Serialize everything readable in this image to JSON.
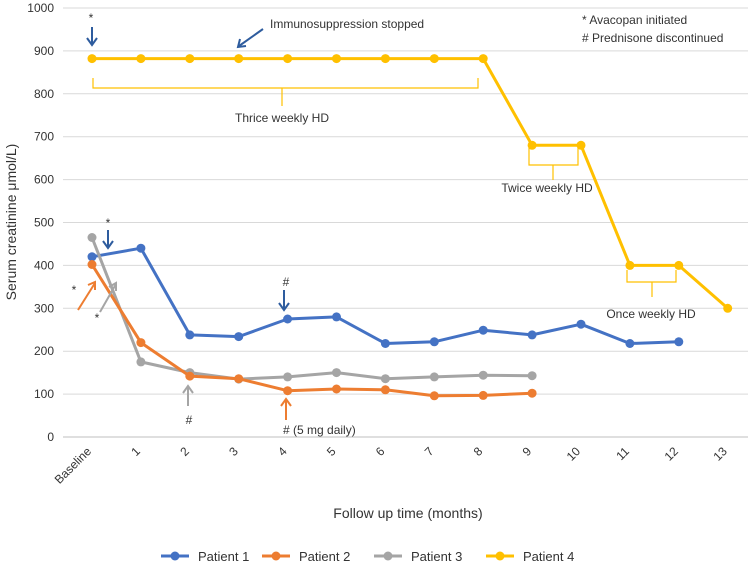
{
  "chart_data": {
    "type": "line",
    "title": "",
    "xlabel": "Follow up time (months)",
    "ylabel": "Serum creatinine μmol/L)",
    "ylim": [
      0,
      1000
    ],
    "yticks": [
      0,
      100,
      200,
      300,
      400,
      500,
      600,
      700,
      800,
      900,
      1000
    ],
    "categories": [
      "Baseline",
      "1",
      "2",
      "3",
      "4",
      "5",
      "6",
      "7",
      "8",
      "9",
      "10",
      "11",
      "12",
      "13"
    ],
    "grid": true,
    "legend_position": "bottom",
    "series": [
      {
        "name": "Patient 1",
        "color": "#4472C4",
        "values": [
          420,
          440,
          238,
          234,
          275,
          280,
          218,
          222,
          249,
          238,
          263,
          218,
          222,
          null
        ]
      },
      {
        "name": "Patient 2",
        "color": "#ED7D31",
        "values": [
          402,
          220,
          142,
          136,
          108,
          112,
          110,
          96,
          97,
          102,
          null,
          null,
          null,
          null
        ]
      },
      {
        "name": "Patient 3",
        "color": "#A5A5A5",
        "values": [
          465,
          175,
          150,
          135,
          140,
          150,
          136,
          140,
          144,
          143,
          null,
          null,
          null,
          null
        ]
      },
      {
        "name": "Patient 4",
        "color": "#FFC000",
        "values": [
          882,
          882,
          882,
          882,
          882,
          882,
          882,
          882,
          882,
          680,
          680,
          400,
          400,
          300
        ]
      }
    ],
    "annotations": {
      "immunosuppression": "Immunosuppression stopped",
      "avacopan_note": "* Avacopan initiated",
      "prednisone_note": "# Prednisone discontinued",
      "thrice": "Thrice weekly HD",
      "twice": "Twice weekly HD",
      "once": "Once weekly HD",
      "star": "*",
      "hash": "#",
      "hash_5mg": "# (5 mg daily)"
    }
  }
}
